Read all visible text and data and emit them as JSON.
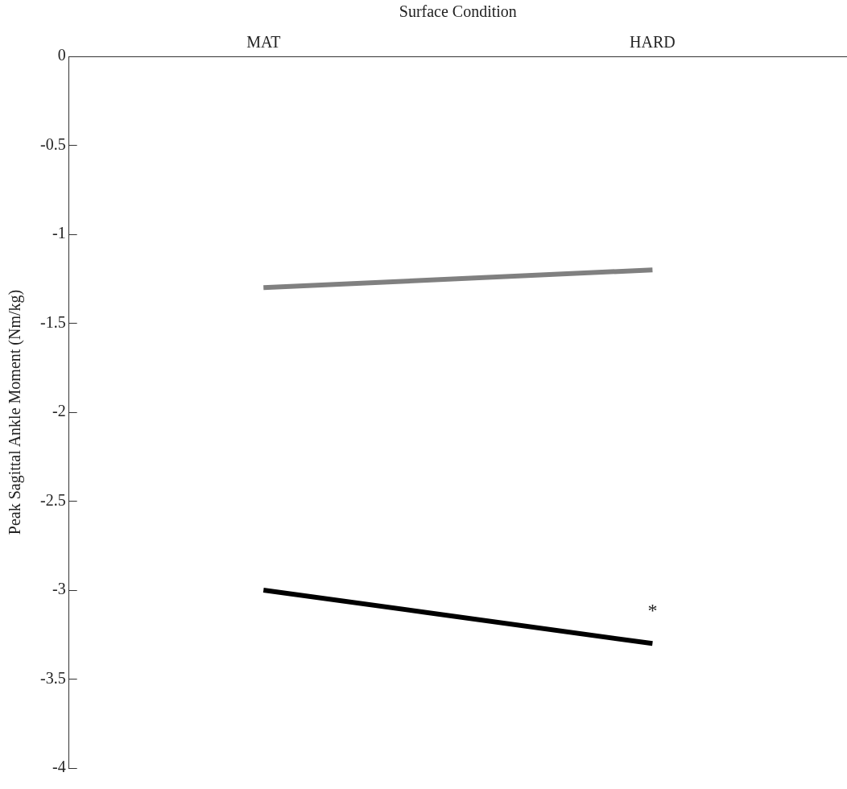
{
  "chart_data": {
    "type": "line",
    "xlabel": "Surface Condition",
    "ylabel": "Peak Sagittal Ankle Moment (Nm/kg)",
    "categories": [
      "MAT",
      "HARD"
    ],
    "series": [
      {
        "color": "#808080",
        "values": [
          -1.3,
          -1.2
        ]
      },
      {
        "color": "#000000",
        "values": [
          -3.0,
          -3.3
        ]
      }
    ],
    "ylim": [
      -4,
      0
    ],
    "yticks": [
      0,
      -0.5,
      -1,
      -1.5,
      -2,
      -2.5,
      -3,
      -3.5,
      -4
    ],
    "grid": false,
    "legend": false,
    "marker": "none",
    "line_style": "solid",
    "annotations": [
      "*"
    ]
  }
}
